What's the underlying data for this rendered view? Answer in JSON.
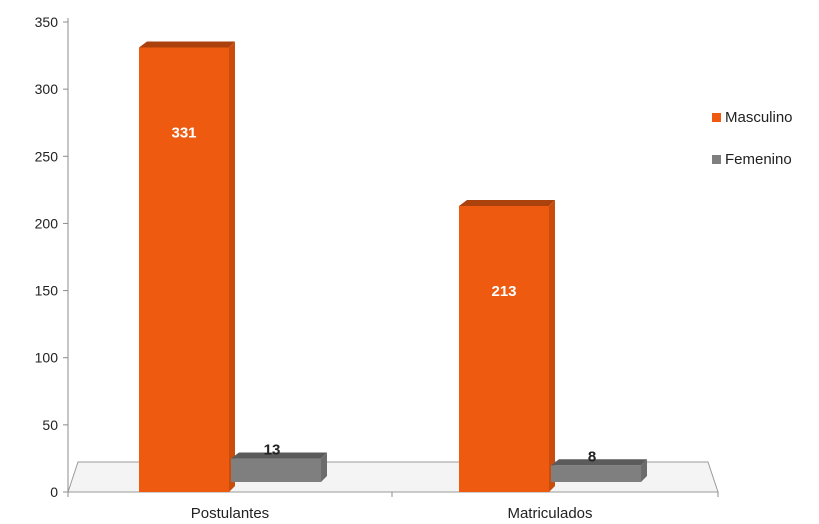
{
  "chart_data": {
    "type": "bar",
    "categories": [
      "Postulantes",
      "Matriculados"
    ],
    "series": [
      {
        "name": "Masculino",
        "values": [
          331,
          213
        ],
        "color": "#ee5a10"
      },
      {
        "name": "Femenino",
        "values": [
          13,
          8
        ],
        "color": "#7f7f7f"
      }
    ],
    "ylim": [
      0,
      350
    ],
    "yticks": [
      "0",
      "50",
      "100",
      "150",
      "200",
      "250",
      "300",
      "350"
    ],
    "data_labels": true,
    "legend": "right",
    "grid": false
  }
}
